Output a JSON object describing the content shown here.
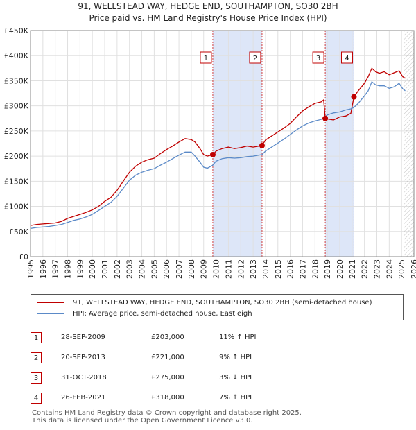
{
  "title_line1": "91, WELLSTEAD WAY, HEDGE END, SOUTHAMPTON, SO30 2BH",
  "title_line2": "Price paid vs. HM Land Registry's House Price Index (HPI)",
  "chart_data": {
    "type": "line",
    "xlim": [
      1995,
      2026
    ],
    "ylim": [
      0,
      450000
    ],
    "y_ticks": [
      0,
      50000,
      100000,
      150000,
      200000,
      250000,
      300000,
      350000,
      400000,
      450000
    ],
    "y_tick_labels": [
      "£0",
      "£50K",
      "£100K",
      "£150K",
      "£200K",
      "£250K",
      "£300K",
      "£350K",
      "£400K",
      "£450K"
    ],
    "x_ticks": [
      1995,
      1996,
      1997,
      1998,
      1999,
      2000,
      2001,
      2002,
      2003,
      2004,
      2005,
      2006,
      2007,
      2008,
      2009,
      2010,
      2011,
      2012,
      2013,
      2014,
      2015,
      2016,
      2017,
      2018,
      2019,
      2020,
      2021,
      2022,
      2023,
      2024,
      2025,
      2026
    ],
    "colors": {
      "property": "#c00000",
      "hpi": "#5b8ac8",
      "band": "#dde6f8",
      "grid": "#e0e0e0",
      "marker_line": "#d04040"
    },
    "shaded_bands": [
      [
        2009.74,
        2013.72
      ],
      [
        2018.83,
        2021.15
      ]
    ],
    "future_hatch_from": 2025.2,
    "series": [
      {
        "name": "property",
        "points": [
          [
            1995,
            62000
          ],
          [
            1995.5,
            64000
          ],
          [
            1996,
            65000
          ],
          [
            1996.5,
            66000
          ],
          [
            1997,
            67000
          ],
          [
            1997.5,
            70000
          ],
          [
            1998,
            76000
          ],
          [
            1998.5,
            80000
          ],
          [
            1999,
            84000
          ],
          [
            1999.5,
            88000
          ],
          [
            2000,
            93000
          ],
          [
            2000.5,
            100000
          ],
          [
            2001,
            110000
          ],
          [
            2001.5,
            118000
          ],
          [
            2002,
            132000
          ],
          [
            2002.5,
            150000
          ],
          [
            2003,
            168000
          ],
          [
            2003.5,
            180000
          ],
          [
            2004,
            188000
          ],
          [
            2004.5,
            193000
          ],
          [
            2005,
            196000
          ],
          [
            2005.5,
            205000
          ],
          [
            2006,
            213000
          ],
          [
            2006.5,
            220000
          ],
          [
            2007,
            228000
          ],
          [
            2007.5,
            235000
          ],
          [
            2008,
            233000
          ],
          [
            2008.3,
            228000
          ],
          [
            2008.7,
            215000
          ],
          [
            2009,
            203000
          ],
          [
            2009.3,
            200000
          ],
          [
            2009.74,
            203000
          ],
          [
            2010,
            210000
          ],
          [
            2010.5,
            215000
          ],
          [
            2011,
            218000
          ],
          [
            2011.5,
            215000
          ],
          [
            2012,
            217000
          ],
          [
            2012.5,
            220000
          ],
          [
            2013,
            218000
          ],
          [
            2013.72,
            221000
          ],
          [
            2014,
            232000
          ],
          [
            2014.5,
            240000
          ],
          [
            2015,
            248000
          ],
          [
            2015.5,
            256000
          ],
          [
            2016,
            265000
          ],
          [
            2016.5,
            278000
          ],
          [
            2017,
            290000
          ],
          [
            2017.5,
            298000
          ],
          [
            2018,
            305000
          ],
          [
            2018.5,
            308000
          ],
          [
            2018.7,
            312000
          ],
          [
            2018.83,
            275000
          ],
          [
            2019,
            274000
          ],
          [
            2019.5,
            272000
          ],
          [
            2020,
            278000
          ],
          [
            2020.5,
            280000
          ],
          [
            2020.9,
            285000
          ],
          [
            2021.15,
            318000
          ],
          [
            2021.5,
            330000
          ],
          [
            2022,
            345000
          ],
          [
            2022.3,
            358000
          ],
          [
            2022.6,
            375000
          ],
          [
            2022.9,
            368000
          ],
          [
            2023.2,
            365000
          ],
          [
            2023.6,
            368000
          ],
          [
            2024,
            362000
          ],
          [
            2024.4,
            366000
          ],
          [
            2024.8,
            370000
          ],
          [
            2025.1,
            358000
          ],
          [
            2025.3,
            355000
          ]
        ]
      },
      {
        "name": "hpi",
        "points": [
          [
            1995,
            56000
          ],
          [
            1995.5,
            58000
          ],
          [
            1996,
            59000
          ],
          [
            1996.5,
            60000
          ],
          [
            1997,
            62000
          ],
          [
            1997.5,
            64000
          ],
          [
            1998,
            68000
          ],
          [
            1998.5,
            72000
          ],
          [
            1999,
            75000
          ],
          [
            1999.5,
            79000
          ],
          [
            2000,
            84000
          ],
          [
            2000.5,
            92000
          ],
          [
            2001,
            100000
          ],
          [
            2001.5,
            108000
          ],
          [
            2002,
            120000
          ],
          [
            2002.5,
            136000
          ],
          [
            2003,
            152000
          ],
          [
            2003.5,
            162000
          ],
          [
            2004,
            168000
          ],
          [
            2004.5,
            172000
          ],
          [
            2005,
            175000
          ],
          [
            2005.5,
            182000
          ],
          [
            2006,
            188000
          ],
          [
            2006.5,
            195000
          ],
          [
            2007,
            202000
          ],
          [
            2007.5,
            208000
          ],
          [
            2008,
            208000
          ],
          [
            2008.3,
            200000
          ],
          [
            2008.7,
            188000
          ],
          [
            2009,
            178000
          ],
          [
            2009.3,
            176000
          ],
          [
            2009.74,
            182000
          ],
          [
            2010,
            190000
          ],
          [
            2010.5,
            195000
          ],
          [
            2011,
            197000
          ],
          [
            2011.5,
            196000
          ],
          [
            2012,
            197000
          ],
          [
            2012.5,
            199000
          ],
          [
            2013,
            200000
          ],
          [
            2013.72,
            203000
          ],
          [
            2014,
            210000
          ],
          [
            2014.5,
            218000
          ],
          [
            2015,
            226000
          ],
          [
            2015.5,
            234000
          ],
          [
            2016,
            243000
          ],
          [
            2016.5,
            252000
          ],
          [
            2017,
            260000
          ],
          [
            2017.5,
            266000
          ],
          [
            2018,
            270000
          ],
          [
            2018.5,
            273000
          ],
          [
            2018.83,
            279000
          ],
          [
            2019,
            282000
          ],
          [
            2019.5,
            286000
          ],
          [
            2020,
            288000
          ],
          [
            2020.5,
            292000
          ],
          [
            2020.9,
            294000
          ],
          [
            2021.15,
            297000
          ],
          [
            2021.5,
            305000
          ],
          [
            2022,
            320000
          ],
          [
            2022.3,
            330000
          ],
          [
            2022.6,
            348000
          ],
          [
            2022.9,
            342000
          ],
          [
            2023.2,
            340000
          ],
          [
            2023.6,
            340000
          ],
          [
            2024,
            335000
          ],
          [
            2024.4,
            338000
          ],
          [
            2024.8,
            345000
          ],
          [
            2025.1,
            334000
          ],
          [
            2025.3,
            330000
          ]
        ]
      }
    ],
    "transactions": [
      {
        "n": "1",
        "x": 2009.74,
        "y": 203000
      },
      {
        "n": "2",
        "x": 2013.72,
        "y": 221000
      },
      {
        "n": "3",
        "x": 2018.83,
        "y": 275000
      },
      {
        "n": "4",
        "x": 2021.15,
        "y": 318000
      }
    ]
  },
  "legend": {
    "property_label": "91, WELLSTEAD WAY, HEDGE END, SOUTHAMPTON, SO30 2BH (semi-detached house)",
    "hpi_label": "HPI: Average price, semi-detached house, Eastleigh"
  },
  "sales": [
    {
      "n": "1",
      "date": "28-SEP-2009",
      "price": "£203,000",
      "hpi": "11% ↑ HPI"
    },
    {
      "n": "2",
      "date": "20-SEP-2013",
      "price": "£221,000",
      "hpi": "9% ↑ HPI"
    },
    {
      "n": "3",
      "date": "31-OCT-2018",
      "price": "£275,000",
      "hpi": "3% ↓ HPI"
    },
    {
      "n": "4",
      "date": "26-FEB-2021",
      "price": "£318,000",
      "hpi": "7% ↑ HPI"
    }
  ],
  "footer_line1": "Contains HM Land Registry data © Crown copyright and database right 2025.",
  "footer_line2": "This data is licensed under the Open Government Licence v3.0."
}
